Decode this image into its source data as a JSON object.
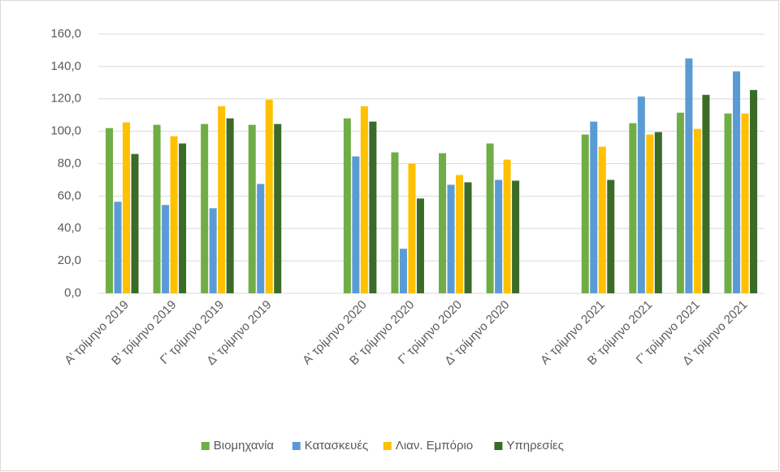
{
  "chart_data": {
    "type": "bar",
    "categories": [
      "Α’ τρίμηνο 2019",
      "Β’ τρίμηνο 2019",
      "Γ’ τρίμηνο 2019",
      "Δ’ τρίμηνο 2019",
      null,
      "Α’ τρίμηνο 2020",
      "Β’ τρίμηνο 2020",
      "Γ’ τρίμηνο 2020",
      "Δ’ τρίμηνο 2020",
      null,
      "Α’ τρίμηνο 2021",
      "Β’ τρίμηνο 2021",
      "Γ’ τρίμηνο 2021",
      "Δ’ τρίμηνο 2021"
    ],
    "series": [
      {
        "name": "Βιομηχανία",
        "color": "#70ad47",
        "values": [
          102,
          104,
          104.5,
          104,
          null,
          108,
          87,
          86.5,
          92.5,
          null,
          98,
          105,
          111.5,
          111
        ]
      },
      {
        "name": "Κατασκευές",
        "color": "#5b9bd5",
        "values": [
          56.5,
          54.5,
          52.5,
          67.5,
          null,
          84.5,
          27.5,
          67,
          70,
          null,
          106,
          121.5,
          145,
          137
        ]
      },
      {
        "name": "Λιαν. Εμπόριο",
        "color": "#ffc000",
        "values": [
          105.5,
          97,
          115.5,
          119.5,
          null,
          115.5,
          80,
          73,
          82.5,
          null,
          90.5,
          98,
          101.5,
          111
        ]
      },
      {
        "name": "Υπηρεσίες",
        "color": "#3b6b28",
        "values": [
          86,
          92.5,
          108,
          104.5,
          null,
          106,
          58.5,
          68.5,
          69.5,
          null,
          70,
          99.5,
          122.5,
          125.5
        ]
      }
    ],
    "ylim": [
      0,
      160
    ],
    "yticks": [
      {
        "value": 0,
        "label": "0,0"
      },
      {
        "value": 20,
        "label": "20,0"
      },
      {
        "value": 40,
        "label": "40,0"
      },
      {
        "value": 60,
        "label": "60,0"
      },
      {
        "value": 80,
        "label": "80,0"
      },
      {
        "value": 100,
        "label": "100,0"
      },
      {
        "value": 120,
        "label": "120,0"
      },
      {
        "value": 140,
        "label": "140,0"
      },
      {
        "value": 160,
        "label": "160,0"
      }
    ],
    "grid": true,
    "legend": "bottom"
  }
}
